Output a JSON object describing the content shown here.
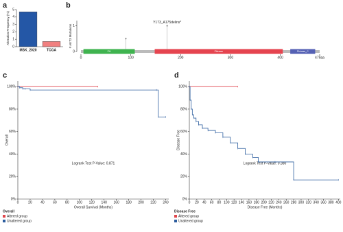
{
  "chart_data": [
    {
      "type": "bar",
      "panel_label": "a",
      "y_label": "Alteration Frequency (%)",
      "categories": [
        "MSK_2020",
        "TCGA"
      ],
      "values": [
        4.7,
        0.7
      ],
      "colors": [
        "#2457a6",
        "#f07f7f"
      ],
      "ylim": [
        0,
        5
      ],
      "yticks": [
        0,
        1,
        2,
        3,
        4,
        5
      ]
    },
    {
      "type": "lollipop",
      "panel_label": "b",
      "y_label": "# AKT3 Mutations",
      "x": [
        90,
        173
      ],
      "values": [
        0.5,
        1
      ],
      "ylim": [
        0,
        1.2
      ],
      "yticks": [
        0,
        1
      ],
      "annotations": [
        {
          "text": "Y173_A175delins*",
          "x": 173,
          "y": 1
        }
      ],
      "domains": [
        {
          "name": "PH",
          "start": 5,
          "end": 108,
          "color": "#3fb34f"
        },
        {
          "name": "Pkinase",
          "start": 148,
          "end": 405,
          "color": "#e5444f"
        },
        {
          "name": "Pkinase_C",
          "start": 420,
          "end": 470,
          "color": "#5561b4"
        }
      ],
      "xlim": [
        0,
        479
      ],
      "xticks": [
        0,
        100,
        200,
        300,
        400,
        {
          "value": 479,
          "label": "479aa"
        }
      ]
    },
    {
      "type": "km",
      "panel_label": "c",
      "x_label": "Overall Survival (Months)",
      "y_label": "Overall",
      "legend_title": "Overall",
      "annotation": "Logrank Test P-Value: 0.871",
      "series": [
        {
          "name": "Altered group",
          "color": "#e0454a",
          "x": [
            0,
            130
          ],
          "values": [
            100,
            100
          ]
        },
        {
          "name": "Unaltered group",
          "color": "#2b5c9e",
          "x": [
            0,
            3,
            8,
            12,
            20,
            225,
            228,
            240
          ],
          "values": [
            100,
            99,
            98,
            98,
            97,
            97,
            73,
            73
          ]
        }
      ],
      "xlim": [
        0,
        245
      ],
      "xticks": [
        0,
        20,
        40,
        60,
        80,
        100,
        120,
        140,
        160,
        180,
        200,
        220,
        240
      ],
      "ylim": [
        0,
        105
      ],
      "yticks": [
        {
          "value": 0,
          "label": "0%"
        },
        {
          "value": 20,
          "label": "20%"
        },
        {
          "value": 40,
          "label": "40%"
        },
        {
          "value": 60,
          "label": "60%"
        },
        {
          "value": 80,
          "label": "80%"
        },
        {
          "value": 100,
          "label": "100%"
        }
      ]
    },
    {
      "type": "km",
      "panel_label": "d",
      "x_label": "Disease Free (Months)",
      "y_label": "Disease Free",
      "legend_title": "Disease Free",
      "annotation": "Logrank Test P-Value: 0.380",
      "series": [
        {
          "name": "Altered group",
          "color": "#e0454a",
          "x": [
            0,
            130
          ],
          "values": [
            100,
            100
          ]
        },
        {
          "name": "Unaltered group",
          "color": "#2b5c9e",
          "x": [
            0,
            2,
            5,
            8,
            12,
            18,
            25,
            35,
            50,
            70,
            90,
            110,
            130,
            150,
            170,
            185,
            230,
            280,
            400
          ],
          "values": [
            100,
            88,
            80,
            75,
            72,
            69,
            66,
            63,
            61,
            59,
            55,
            50,
            45,
            40,
            37,
            33,
            33,
            17,
            17
          ]
        }
      ],
      "xlim": [
        0,
        405
      ],
      "xticks": [
        0,
        20,
        40,
        60,
        80,
        100,
        120,
        140,
        160,
        180,
        200,
        220,
        240,
        260,
        280,
        300,
        320,
        340,
        360,
        380,
        400
      ],
      "ylim": [
        0,
        105
      ],
      "yticks": [
        {
          "value": 0,
          "label": "0%"
        },
        {
          "value": 20,
          "label": "20%"
        },
        {
          "value": 40,
          "label": "40%"
        },
        {
          "value": 60,
          "label": "60%"
        },
        {
          "value": 80,
          "label": "80%"
        },
        {
          "value": 100,
          "label": "100%"
        }
      ]
    }
  ]
}
